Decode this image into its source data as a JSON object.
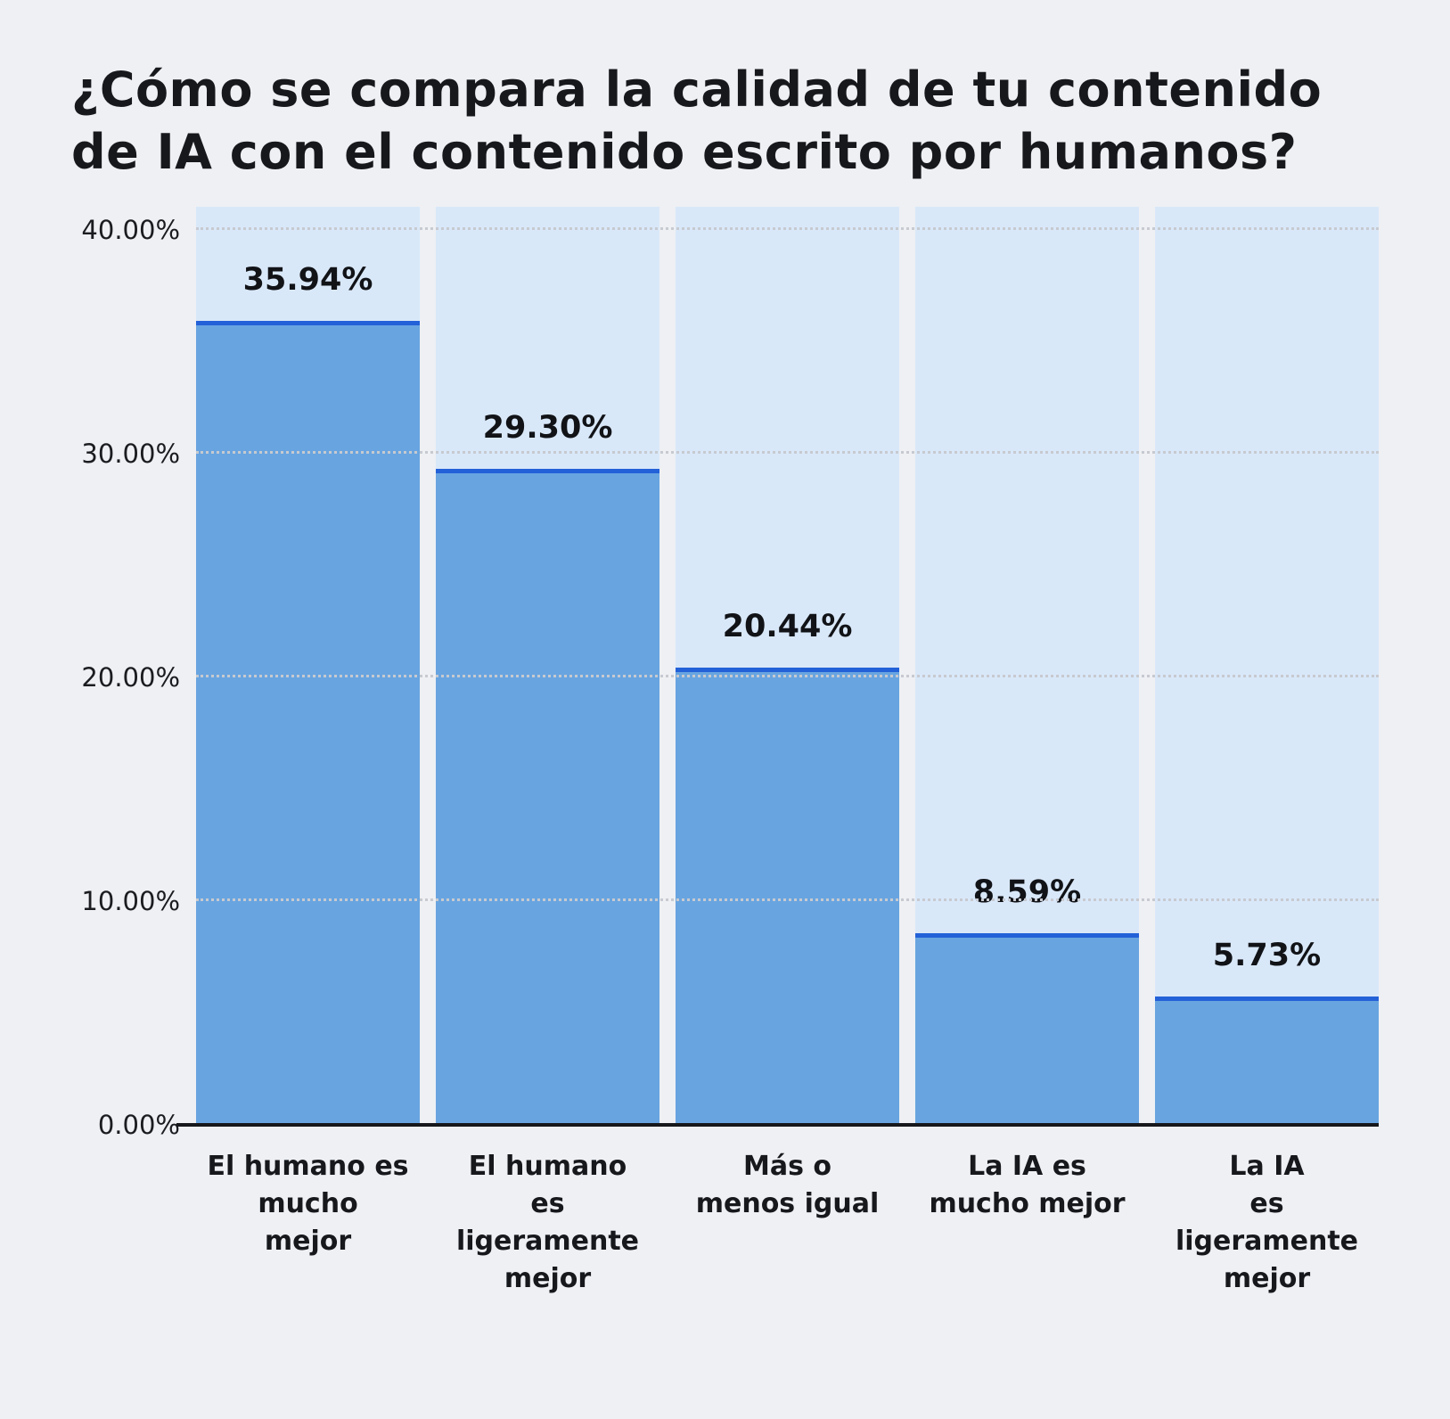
{
  "chart_data": {
    "type": "bar",
    "title": "¿Cómo se compara la calidad de tu contenido de IA con el contenido escrito por humanos?",
    "categories": [
      [
        "El humano es",
        "mucho",
        "mejor"
      ],
      [
        "El humano",
        "es ligeramente",
        "mejor"
      ],
      [
        "Más o",
        "menos igual"
      ],
      [
        "La IA es",
        "mucho mejor"
      ],
      [
        "La IA",
        "es ligeramente",
        "mejor"
      ]
    ],
    "values": [
      35.94,
      29.3,
      20.44,
      8.59,
      5.73
    ],
    "value_labels": [
      "35.94%",
      "29.30%",
      "20.44%",
      "8.59%",
      "5.73%"
    ],
    "y_ticks": [
      "0.00%",
      "10.00%",
      "20.00%",
      "30.00%",
      "40.00%"
    ],
    "y_tick_values": [
      0,
      10,
      20,
      30,
      40
    ],
    "ylim": [
      0,
      41
    ],
    "xlabel": "",
    "ylabel": "",
    "grid": "horizontal-dotted",
    "legend": "none",
    "colors": {
      "background": "#eef0f4",
      "track": "#d9e8f9",
      "bar": "#68a4e0",
      "bar_top_border": "#2361d8",
      "gridline": "#c7cad0",
      "axis_line": "#16181c",
      "text": "#16181c"
    }
  }
}
